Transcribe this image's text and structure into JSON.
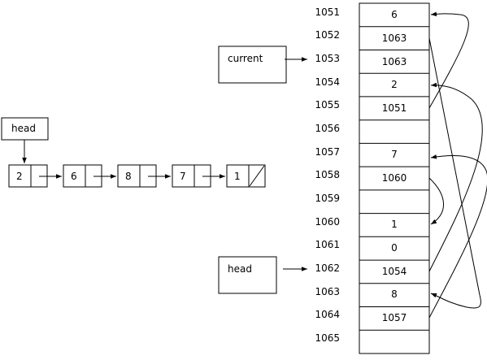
{
  "linked_list": {
    "head_label": "head",
    "nodes": [
      {
        "value": "2",
        "null_next": false
      },
      {
        "value": "6",
        "null_next": false
      },
      {
        "value": "8",
        "null_next": false
      },
      {
        "value": "7",
        "null_next": false
      },
      {
        "value": "1",
        "null_next": true
      }
    ]
  },
  "pointers": {
    "current_label": "current",
    "head_label": "head",
    "current_points_to": "1053",
    "head_points_to": "1062"
  },
  "memory": {
    "cells": [
      {
        "address": "1051",
        "value": "6"
      },
      {
        "address": "1052",
        "value": "1063"
      },
      {
        "address": "1053",
        "value": "1063"
      },
      {
        "address": "1054",
        "value": "2"
      },
      {
        "address": "1055",
        "value": "1051"
      },
      {
        "address": "1056",
        "value": ""
      },
      {
        "address": "1057",
        "value": "7"
      },
      {
        "address": "1058",
        "value": "1060"
      },
      {
        "address": "1059",
        "value": ""
      },
      {
        "address": "1060",
        "value": "1"
      },
      {
        "address": "1061",
        "value": "0"
      },
      {
        "address": "1062",
        "value": "1054"
      },
      {
        "address": "1063",
        "value": "8"
      },
      {
        "address": "1064",
        "value": "1057"
      },
      {
        "address": "1065",
        "value": ""
      }
    ]
  }
}
